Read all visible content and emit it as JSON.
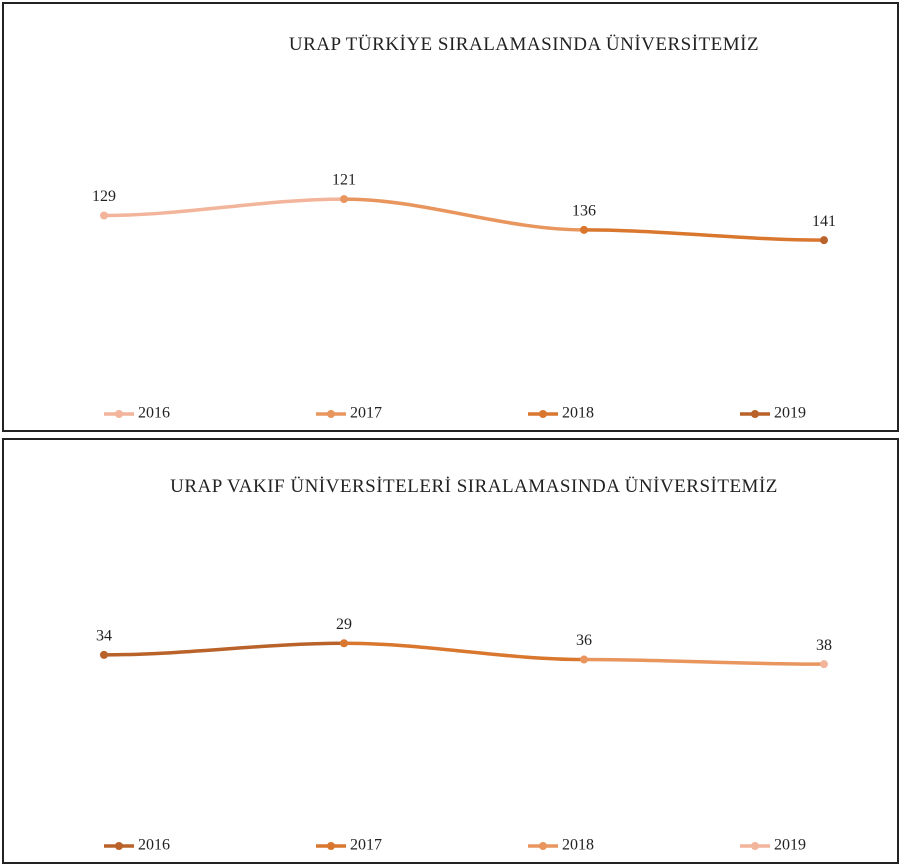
{
  "chart_data": [
    {
      "type": "line",
      "title": "URAP TÜRKİYE SIRALAMASINDA ÜNİVERSİTEMİZ",
      "categories": [
        "2016",
        "2017",
        "2018",
        "2019"
      ],
      "values": [
        129,
        121,
        136,
        141
      ],
      "colors": [
        "#f2b49a",
        "#e8955e",
        "#d9772f",
        "#b9622a"
      ],
      "ylim": [
        211,
        65
      ]
    },
    {
      "type": "line",
      "title": "URAP VAKIF ÜNİVERSİTELERİ SIRALAMASINDA ÜNİVERSİTEMİZ",
      "categories": [
        "2016",
        "2017",
        "2018",
        "2019"
      ],
      "values": [
        34,
        29,
        36,
        38
      ],
      "colors": [
        "#b9622a",
        "#d9772f",
        "#e8955e",
        "#f2b49a"
      ],
      "ylim": [
        105,
        -24
      ]
    }
  ]
}
